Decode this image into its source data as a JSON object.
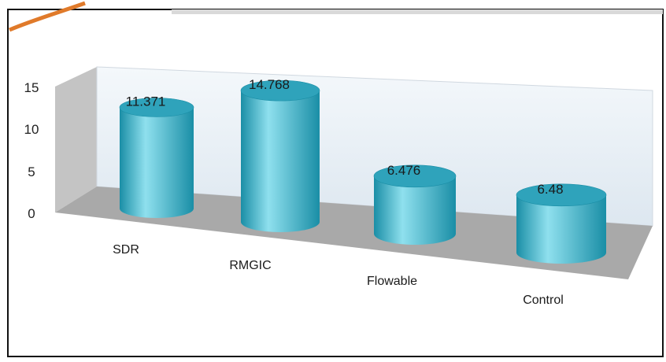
{
  "chart_data": {
    "type": "bar",
    "style": "3d-cylinder",
    "categories": [
      "SDR",
      "RMGIC",
      "Flowable",
      "Control"
    ],
    "values": [
      11.371,
      14.768,
      6.476,
      6.48
    ],
    "value_labels": [
      "11.371",
      "14.768",
      "6.476",
      "6.48"
    ],
    "yticks": [
      "0",
      "5",
      "10",
      "15"
    ],
    "ylim": [
      0,
      15
    ],
    "grid": false,
    "legend": "none",
    "colors": {
      "bar": "#3fb8cf",
      "bar_light": "#8fe0ee",
      "bar_dark": "#1a8ea6",
      "bar_top": "#2fa3bb",
      "back_wall": "#e8eff6",
      "side_wall": "#b8b8b8",
      "floor": "#a9a9a9",
      "accent": "#e07a2a"
    }
  }
}
